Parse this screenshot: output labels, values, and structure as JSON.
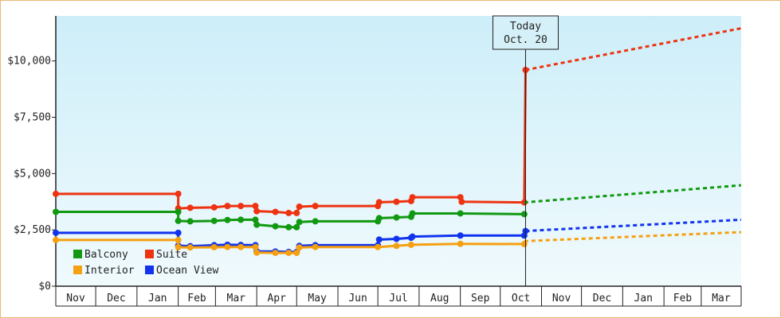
{
  "chart_data": {
    "type": "line",
    "x_unit": "date",
    "y_axis": {
      "min": 0,
      "max": 12000,
      "ticks": [
        0,
        2500,
        5000,
        7500,
        10000
      ],
      "tick_labels": [
        "$0",
        "$2,500",
        "$5,000",
        "$7,500",
        "$10,000"
      ]
    },
    "x_axis": {
      "start": "2020-11-01",
      "end": "2022-03-31",
      "month_labels": [
        "Nov",
        "Dec",
        "Jan",
        "Feb",
        "Mar",
        "Apr",
        "May",
        "Jun",
        "Jul",
        "Aug",
        "Sep",
        "Oct",
        "Nov",
        "Dec",
        "Jan",
        "Feb",
        "Mar"
      ]
    },
    "today": {
      "date": "2021-10-20",
      "label_line1": "Today",
      "label_line2": "Oct. 20"
    },
    "legend": {
      "placement": "bottom-left",
      "items": [
        {
          "name": "Balcony",
          "color": "#119911"
        },
        {
          "name": "Suite",
          "color": "#ee3311"
        },
        {
          "name": "Interior",
          "color": "#f5a010"
        },
        {
          "name": "Ocean View",
          "color": "#1133ee"
        }
      ]
    },
    "series": [
      {
        "name": "Suite",
        "color": "#ee3311",
        "history": [
          [
            "2020-11-01",
            4100
          ],
          [
            "2021-02-01",
            4100
          ],
          [
            "2021-02-01",
            3450
          ],
          [
            "2021-02-10",
            3480
          ],
          [
            "2021-02-28",
            3500
          ],
          [
            "2021-03-10",
            3560
          ],
          [
            "2021-03-20",
            3560
          ],
          [
            "2021-03-31",
            3560
          ],
          [
            "2021-04-01",
            3330
          ],
          [
            "2021-04-15",
            3300
          ],
          [
            "2021-04-25",
            3250
          ],
          [
            "2021-05-01",
            3250
          ],
          [
            "2021-05-03",
            3530
          ],
          [
            "2021-05-15",
            3560
          ],
          [
            "2021-07-01",
            3560
          ],
          [
            "2021-07-02",
            3730
          ],
          [
            "2021-07-15",
            3750
          ],
          [
            "2021-07-26",
            3780
          ],
          [
            "2021-07-27",
            3950
          ],
          [
            "2021-09-01",
            3950
          ],
          [
            "2021-09-02",
            3750
          ],
          [
            "2021-10-19",
            3720
          ],
          [
            "2021-10-20",
            9600
          ]
        ],
        "forecast": [
          [
            "2021-10-20",
            9600
          ],
          [
            "2022-03-31",
            11450
          ]
        ]
      },
      {
        "name": "Balcony",
        "color": "#119911",
        "history": [
          [
            "2020-11-01",
            3300
          ],
          [
            "2021-02-01",
            3300
          ],
          [
            "2021-02-01",
            2900
          ],
          [
            "2021-02-10",
            2880
          ],
          [
            "2021-02-28",
            2900
          ],
          [
            "2021-03-10",
            2940
          ],
          [
            "2021-03-20",
            2950
          ],
          [
            "2021-03-31",
            2950
          ],
          [
            "2021-04-01",
            2730
          ],
          [
            "2021-04-15",
            2660
          ],
          [
            "2021-04-25",
            2620
          ],
          [
            "2021-05-01",
            2620
          ],
          [
            "2021-05-03",
            2850
          ],
          [
            "2021-05-15",
            2880
          ],
          [
            "2021-07-01",
            2880
          ],
          [
            "2021-07-02",
            3020
          ],
          [
            "2021-07-15",
            3050
          ],
          [
            "2021-07-26",
            3080
          ],
          [
            "2021-07-27",
            3230
          ],
          [
            "2021-09-01",
            3230
          ],
          [
            "2021-10-19",
            3200
          ]
        ],
        "forecast": [
          [
            "2021-10-19",
            3720
          ],
          [
            "2022-03-31",
            4480
          ]
        ]
      },
      {
        "name": "Ocean View",
        "color": "#1133ee",
        "history": [
          [
            "2020-11-01",
            2370
          ],
          [
            "2021-02-01",
            2370
          ],
          [
            "2021-02-01",
            1800
          ],
          [
            "2021-02-10",
            1780
          ],
          [
            "2021-02-28",
            1820
          ],
          [
            "2021-03-10",
            1840
          ],
          [
            "2021-03-20",
            1830
          ],
          [
            "2021-03-31",
            1820
          ],
          [
            "2021-04-01",
            1550
          ],
          [
            "2021-04-15",
            1540
          ],
          [
            "2021-04-25",
            1520
          ],
          [
            "2021-05-01",
            1520
          ],
          [
            "2021-05-03",
            1790
          ],
          [
            "2021-05-15",
            1820
          ],
          [
            "2021-07-01",
            1820
          ],
          [
            "2021-07-02",
            2070
          ],
          [
            "2021-07-15",
            2100
          ],
          [
            "2021-07-26",
            2150
          ],
          [
            "2021-07-27",
            2200
          ],
          [
            "2021-09-01",
            2250
          ],
          [
            "2021-10-19",
            2250
          ],
          [
            "2021-10-20",
            2450
          ]
        ],
        "forecast": [
          [
            "2021-10-20",
            2450
          ],
          [
            "2022-03-31",
            2950
          ]
        ]
      },
      {
        "name": "Interior",
        "color": "#f5a010",
        "history": [
          [
            "2020-11-01",
            2050
          ],
          [
            "2021-02-01",
            2050
          ],
          [
            "2021-02-01",
            1730
          ],
          [
            "2021-02-10",
            1720
          ],
          [
            "2021-02-28",
            1730
          ],
          [
            "2021-03-10",
            1740
          ],
          [
            "2021-03-20",
            1740
          ],
          [
            "2021-03-31",
            1740
          ],
          [
            "2021-04-01",
            1490
          ],
          [
            "2021-04-15",
            1480
          ],
          [
            "2021-04-25",
            1480
          ],
          [
            "2021-05-01",
            1480
          ],
          [
            "2021-05-03",
            1720
          ],
          [
            "2021-05-15",
            1740
          ],
          [
            "2021-07-01",
            1740
          ],
          [
            "2021-07-15",
            1790
          ],
          [
            "2021-07-26",
            1840
          ],
          [
            "2021-09-01",
            1880
          ],
          [
            "2021-10-19",
            1870
          ]
        ],
        "forecast": [
          [
            "2021-10-19",
            2000
          ],
          [
            "2022-03-31",
            2400
          ]
        ]
      }
    ]
  }
}
